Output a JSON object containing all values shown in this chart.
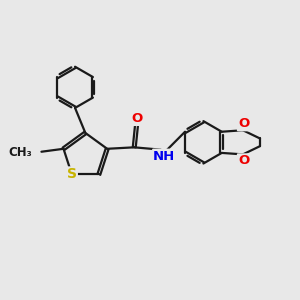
{
  "bg_color": "#e8e8e8",
  "bond_color": "#1a1a1a",
  "bond_width": 1.6,
  "atom_colors": {
    "S": "#c8b400",
    "N": "#0000ee",
    "O": "#ee0000",
    "C": "#1a1a1a"
  },
  "font_size": 9.5
}
